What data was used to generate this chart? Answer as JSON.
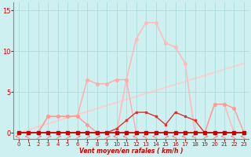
{
  "xlabel": "Vent moyen/en rafales ( km/h )",
  "xlim": [
    -0.5,
    23.5
  ],
  "ylim": [
    -0.8,
    16
  ],
  "yticks": [
    0,
    5,
    10,
    15
  ],
  "xticks": [
    0,
    1,
    2,
    3,
    4,
    5,
    6,
    7,
    8,
    9,
    10,
    11,
    12,
    13,
    14,
    15,
    16,
    17,
    18,
    19,
    20,
    21,
    22,
    23
  ],
  "bg_color": "#cef0f0",
  "grid_color": "#aadddd",
  "series_lightest": {
    "x": [
      0,
      1,
      2,
      3,
      4,
      5,
      6,
      7,
      8,
      9,
      10,
      11,
      12,
      13,
      14,
      15,
      16,
      17,
      18,
      19,
      20,
      21,
      22,
      23
    ],
    "y": [
      0,
      0,
      0,
      0,
      0,
      0,
      0,
      0,
      0,
      0,
      0,
      6.5,
      11.5,
      13.5,
      13.5,
      11,
      10.5,
      8.5,
      0,
      0,
      3.5,
      3.5,
      0,
      0
    ],
    "color": "#ffbbbb",
    "lw": 1.2,
    "marker": "o",
    "ms": 2.5
  },
  "series_diag": {
    "x": [
      0,
      23
    ],
    "y": [
      0,
      8.5
    ],
    "color": "#ffcccc",
    "lw": 1.2
  },
  "series_medium": {
    "x": [
      0,
      1,
      2,
      3,
      4,
      5,
      6,
      7,
      8,
      9,
      10,
      11,
      12,
      13,
      14,
      15,
      16,
      17,
      18,
      19,
      20,
      21,
      22,
      23
    ],
    "y": [
      0,
      0,
      0,
      2,
      2,
      2,
      2,
      1,
      0,
      0,
      0,
      0,
      0,
      0,
      0,
      0,
      0,
      0,
      0,
      0,
      3.5,
      3.5,
      3,
      0
    ],
    "color": "#ff9999",
    "lw": 1.0,
    "marker": "o",
    "ms": 2.5
  },
  "series_medium2": {
    "x": [
      0,
      1,
      2,
      3,
      4,
      5,
      6,
      7,
      8,
      9,
      10,
      11,
      12,
      13,
      14,
      15,
      16,
      17,
      18,
      19,
      20,
      21,
      22,
      23
    ],
    "y": [
      0,
      0,
      0,
      2,
      2,
      2,
      2,
      6.5,
      6,
      6,
      6.5,
      6.5,
      0,
      0,
      0,
      0,
      0,
      0,
      0,
      0,
      0,
      0,
      0,
      0
    ],
    "color": "#ffaaaa",
    "lw": 1.0,
    "marker": "o",
    "ms": 2.5
  },
  "series_dark2": {
    "x": [
      0,
      1,
      2,
      3,
      4,
      5,
      6,
      7,
      8,
      9,
      10,
      11,
      12,
      13,
      14,
      15,
      16,
      17,
      18,
      19,
      20,
      21,
      22,
      23
    ],
    "y": [
      0,
      0,
      0,
      0,
      0,
      0,
      0,
      0,
      0,
      0,
      0.5,
      1.5,
      2.5,
      2.5,
      2.0,
      1.0,
      2.5,
      2,
      1.5,
      0,
      0,
      0,
      0,
      0
    ],
    "color": "#dd3333",
    "lw": 1.0,
    "marker": "s",
    "ms": 2.0
  },
  "series_darkest": {
    "x": [
      0,
      1,
      2,
      3,
      4,
      5,
      6,
      7,
      8,
      9,
      10,
      11,
      12,
      13,
      14,
      15,
      16,
      17,
      18,
      19,
      20,
      21,
      22,
      23
    ],
    "y": [
      0,
      0,
      0,
      0,
      0,
      0,
      0,
      0,
      0,
      0,
      0,
      0,
      0,
      0,
      0,
      0,
      0,
      0,
      0,
      0,
      0,
      0,
      0,
      0
    ],
    "color": "#cc0000",
    "lw": 1.2,
    "marker": "s",
    "ms": 2.5
  },
  "arrows_x": [
    0,
    1,
    2,
    3,
    4,
    5,
    6,
    7,
    8,
    9,
    10,
    11,
    12,
    13,
    14,
    15,
    16,
    17,
    18,
    19,
    20,
    21,
    22,
    23
  ],
  "arrows_dir": [
    -1,
    -1,
    1,
    1,
    1,
    1,
    1,
    1,
    1,
    1,
    -1,
    -1,
    -1,
    -1,
    -1,
    1,
    -1,
    -1,
    -1,
    1,
    1,
    -1,
    -1,
    -1
  ]
}
